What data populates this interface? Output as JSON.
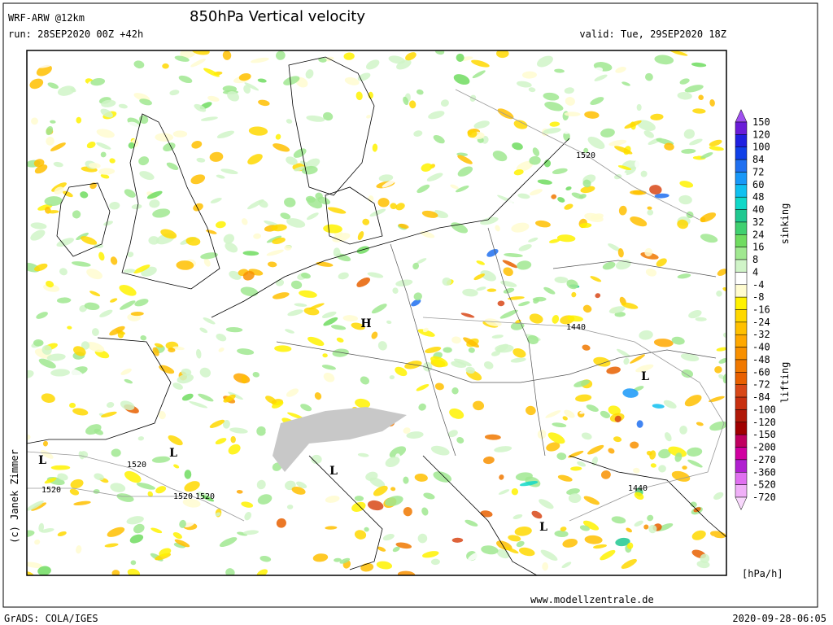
{
  "header": {
    "model": "WRF-ARW @12km",
    "title": "850hPa Vertical velocity",
    "run": "run: 28SEP2020 00Z +42h",
    "valid": "valid: Tue, 29SEP2020 18Z"
  },
  "map": {
    "pressure_centers": [
      "H",
      "L",
      "L",
      "L",
      "L",
      "L"
    ],
    "contour_labels": [
      "1520",
      "1520",
      "1520",
      "1520",
      "1520",
      "1440",
      "1440"
    ]
  },
  "colorbar": {
    "labels": [
      "150",
      "120",
      "100",
      "84",
      "72",
      "60",
      "48",
      "40",
      "32",
      "24",
      "16",
      "8",
      "4",
      "-4",
      "-8",
      "-16",
      "-24",
      "-32",
      "-40",
      "-48",
      "-60",
      "-72",
      "-84",
      "-100",
      "-120",
      "-150",
      "-200",
      "-270",
      "-360",
      "-520",
      "-720"
    ],
    "colors": [
      "#a050f0",
      "#6a1cd8",
      "#2020e0",
      "#1040e8",
      "#2070f0",
      "#1898f8",
      "#10c0f0",
      "#10d8c8",
      "#20c890",
      "#40d070",
      "#70dc60",
      "#a0e890",
      "#d0f4c8",
      "#ffffff",
      "#fffcd0",
      "#fff200",
      "#ffd800",
      "#ffc000",
      "#ffa800",
      "#f89000",
      "#f07800",
      "#e86000",
      "#d84818",
      "#c83010",
      "#b01808",
      "#a00000",
      "#c00060",
      "#d000a0",
      "#b020d0",
      "#e070f0",
      "#f0b0f8",
      "#f8d8fc"
    ],
    "upper_label": "sinking",
    "lower_label": "lifting",
    "unit": "[hPa/h]"
  },
  "footer": {
    "website": "www.modellzentrale.de",
    "software": "GrADS: COLA/IGES",
    "timestamp": "2020-09-28-06:05",
    "copyright": "(c) Janek Zimmer"
  }
}
